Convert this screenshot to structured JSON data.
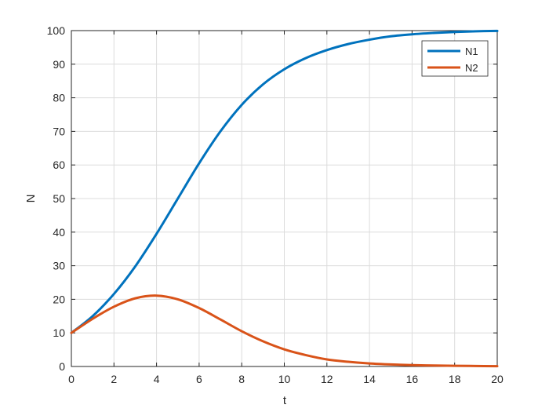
{
  "chart_data": {
    "type": "line",
    "title": "",
    "xlabel": "t",
    "ylabel": "N",
    "xlim": [
      0,
      20
    ],
    "ylim": [
      0,
      100
    ],
    "xticks": [
      "0",
      "2",
      "4",
      "6",
      "8",
      "10",
      "12",
      "14",
      "16",
      "18",
      "20"
    ],
    "yticks": [
      "0",
      "10",
      "20",
      "30",
      "40",
      "50",
      "60",
      "70",
      "80",
      "90",
      "100"
    ],
    "grid": true,
    "legend_position": "top-right",
    "x": [
      0,
      1,
      2,
      3,
      4,
      5,
      6,
      7,
      8,
      9,
      10,
      11,
      12,
      13,
      14,
      15,
      16,
      17,
      18,
      19,
      20
    ],
    "series": [
      {
        "name": "N1",
        "color": "#0072BD",
        "values": [
          10,
          15,
          21.6,
          29.8,
          39.5,
          50,
          60.5,
          70,
          77.9,
          84,
          88.5,
          91.8,
          94.2,
          96,
          97.3,
          98.3,
          98.9,
          99.3,
          99.6,
          99.8,
          99.9
        ]
      },
      {
        "name": "N2",
        "color": "#D95319",
        "values": [
          10,
          14.2,
          17.8,
          20.3,
          21.1,
          20,
          17.4,
          14,
          10.5,
          7.5,
          5.1,
          3.4,
          2.1,
          1.4,
          0.9,
          0.6,
          0.4,
          0.3,
          0.2,
          0.15,
          0.1
        ]
      }
    ]
  }
}
